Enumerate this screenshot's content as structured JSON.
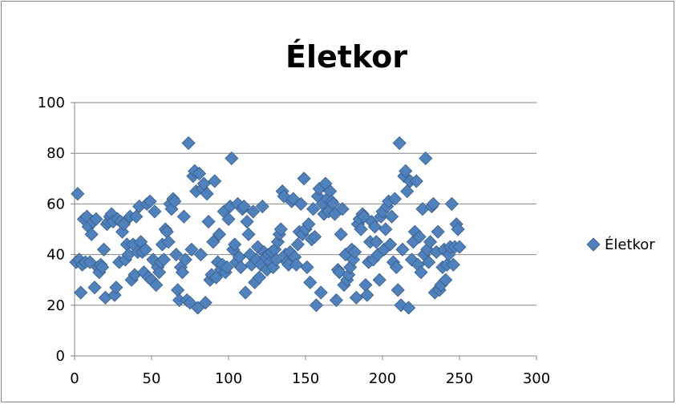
{
  "chart_data": {
    "type": "scatter",
    "title": "Életkor",
    "xlabel": "",
    "ylabel": "",
    "xlim": [
      0,
      300
    ],
    "ylim": [
      0,
      100
    ],
    "x_ticks": [
      0,
      50,
      100,
      150,
      200,
      250,
      300
    ],
    "y_ticks": [
      0,
      20,
      40,
      60,
      80,
      100
    ],
    "grid": "horizontal",
    "legend": {
      "position": "right",
      "entries": [
        "Életkor"
      ]
    },
    "colors": {
      "marker": "#4f81bd",
      "marker_edge": "#385d8a",
      "grid": "#868686",
      "axis": "#868686"
    },
    "series": [
      {
        "name": "Életkor",
        "points": [
          [
            1,
            37
          ],
          [
            2,
            64
          ],
          [
            3,
            38
          ],
          [
            4,
            25
          ],
          [
            5,
            36
          ],
          [
            6,
            54
          ],
          [
            7,
            37
          ],
          [
            8,
            55
          ],
          [
            9,
            51
          ],
          [
            10,
            37
          ],
          [
            11,
            48
          ],
          [
            12,
            53
          ],
          [
            13,
            27
          ],
          [
            14,
            54
          ],
          [
            15,
            35
          ],
          [
            16,
            33
          ],
          [
            17,
            36
          ],
          [
            18,
            35
          ],
          [
            19,
            42
          ],
          [
            20,
            23
          ],
          [
            21,
            52
          ],
          [
            22,
            53
          ],
          [
            23,
            55
          ],
          [
            24,
            56
          ],
          [
            25,
            53
          ],
          [
            26,
            24
          ],
          [
            27,
            27
          ],
          [
            28,
            54
          ],
          [
            29,
            37
          ],
          [
            30,
            53
          ],
          [
            31,
            49
          ],
          [
            32,
            52
          ],
          [
            33,
            38
          ],
          [
            34,
            44
          ],
          [
            35,
            40
          ],
          [
            36,
            55
          ],
          [
            37,
            30
          ],
          [
            38,
            44
          ],
          [
            39,
            32
          ],
          [
            40,
            55
          ],
          [
            41,
            41
          ],
          [
            42,
            59
          ],
          [
            43,
            45
          ],
          [
            44,
            41
          ],
          [
            45,
            33
          ],
          [
            46,
            42
          ],
          [
            47,
            60
          ],
          [
            48,
            31
          ],
          [
            49,
            61
          ],
          [
            50,
            30
          ],
          [
            51,
            38
          ],
          [
            52,
            57
          ],
          [
            53,
            28
          ],
          [
            54,
            35
          ],
          [
            55,
            33
          ],
          [
            56,
            37
          ],
          [
            57,
            44
          ],
          [
            58,
            38
          ],
          [
            59,
            50
          ],
          [
            60,
            49
          ],
          [
            61,
            45
          ],
          [
            62,
            60
          ],
          [
            63,
            58
          ],
          [
            64,
            62
          ],
          [
            65,
            61
          ],
          [
            66,
            40
          ],
          [
            67,
            26
          ],
          [
            68,
            22
          ],
          [
            69,
            35
          ],
          [
            70,
            33
          ],
          [
            71,
            55
          ],
          [
            72,
            38
          ],
          [
            73,
            22
          ],
          [
            74,
            84
          ],
          [
            75,
            21
          ],
          [
            76,
            42
          ],
          [
            77,
            71
          ],
          [
            78,
            73
          ],
          [
            79,
            65
          ],
          [
            80,
            19
          ],
          [
            81,
            72
          ],
          [
            82,
            40
          ],
          [
            83,
            66
          ],
          [
            84,
            68
          ],
          [
            85,
            21
          ],
          [
            86,
            64
          ],
          [
            87,
            53
          ],
          [
            88,
            30
          ],
          [
            89,
            32
          ],
          [
            90,
            45
          ],
          [
            91,
            69
          ],
          [
            92,
            31
          ],
          [
            93,
            37
          ],
          [
            94,
            48
          ],
          [
            95,
            34
          ],
          [
            96,
            36
          ],
          [
            97,
            57
          ],
          [
            98,
            33
          ],
          [
            99,
            35
          ],
          [
            100,
            54
          ],
          [
            101,
            59
          ],
          [
            102,
            78
          ],
          [
            103,
            42
          ],
          [
            104,
            44
          ],
          [
            105,
            37
          ],
          [
            106,
            60
          ],
          [
            107,
            39
          ],
          [
            108,
            35
          ],
          [
            109,
            58
          ],
          [
            110,
            59
          ],
          [
            111,
            25
          ],
          [
            112,
            53
          ],
          [
            113,
            48
          ],
          [
            114,
            40
          ],
          [
            115,
            36
          ],
          [
            116,
            57
          ],
          [
            117,
            29
          ],
          [
            118,
            38
          ],
          [
            119,
            43
          ],
          [
            120,
            31
          ],
          [
            121,
            36
          ],
          [
            122,
            59
          ],
          [
            123,
            41
          ],
          [
            124,
            39
          ],
          [
            125,
            34
          ],
          [
            126,
            40
          ],
          [
            127,
            37
          ],
          [
            128,
            41
          ],
          [
            129,
            35
          ],
          [
            130,
            42
          ],
          [
            131,
            38
          ],
          [
            132,
            45
          ],
          [
            133,
            48
          ],
          [
            134,
            50
          ],
          [
            135,
            65
          ],
          [
            136,
            63
          ],
          [
            137,
            40
          ],
          [
            138,
            37
          ],
          [
            139,
            36
          ],
          [
            140,
            41
          ],
          [
            141,
            61
          ],
          [
            142,
            62
          ],
          [
            143,
            39
          ],
          [
            144,
            36
          ],
          [
            145,
            44
          ],
          [
            146,
            49
          ],
          [
            147,
            60
          ],
          [
            148,
            48
          ],
          [
            149,
            70
          ],
          [
            150,
            50
          ],
          [
            151,
            35
          ],
          [
            152,
            52
          ],
          [
            153,
            29
          ],
          [
            154,
            46
          ],
          [
            155,
            58
          ],
          [
            156,
            47
          ],
          [
            157,
            20
          ],
          [
            158,
            63
          ],
          [
            159,
            66
          ],
          [
            160,
            25
          ],
          [
            161,
            60
          ],
          [
            162,
            56
          ],
          [
            163,
            68
          ],
          [
            164,
            62
          ],
          [
            165,
            57
          ],
          [
            166,
            65
          ],
          [
            167,
            61
          ],
          [
            168,
            60
          ],
          [
            169,
            56
          ],
          [
            170,
            22
          ],
          [
            171,
            34
          ],
          [
            172,
            33
          ],
          [
            173,
            48
          ],
          [
            174,
            58
          ],
          [
            175,
            28
          ],
          [
            176,
            40
          ],
          [
            177,
            30
          ],
          [
            178,
            32
          ],
          [
            179,
            35
          ],
          [
            180,
            42
          ],
          [
            181,
            38
          ],
          [
            182,
            41
          ],
          [
            183,
            23
          ],
          [
            184,
            52
          ],
          [
            185,
            54
          ],
          [
            186,
            50
          ],
          [
            187,
            56
          ],
          [
            188,
            55
          ],
          [
            189,
            28
          ],
          [
            190,
            24
          ],
          [
            191,
            37
          ],
          [
            192,
            45
          ],
          [
            193,
            53
          ],
          [
            194,
            38
          ],
          [
            195,
            51
          ],
          [
            196,
            45
          ],
          [
            197,
            40
          ],
          [
            198,
            30
          ],
          [
            199,
            55
          ],
          [
            200,
            57
          ],
          [
            201,
            42
          ],
          [
            202,
            50
          ],
          [
            203,
            59
          ],
          [
            204,
            61
          ],
          [
            205,
            44
          ],
          [
            206,
            55
          ],
          [
            207,
            37
          ],
          [
            208,
            62
          ],
          [
            209,
            35
          ],
          [
            210,
            26
          ],
          [
            211,
            84
          ],
          [
            212,
            20
          ],
          [
            213,
            42
          ],
          [
            214,
            71
          ],
          [
            215,
            73
          ],
          [
            216,
            65
          ],
          [
            217,
            19
          ],
          [
            218,
            69
          ],
          [
            219,
            38
          ],
          [
            220,
            45
          ],
          [
            221,
            49
          ],
          [
            222,
            69
          ],
          [
            223,
            36
          ],
          [
            224,
            47
          ],
          [
            225,
            33
          ],
          [
            226,
            58
          ],
          [
            227,
            40
          ],
          [
            228,
            78
          ],
          [
            229,
            42
          ],
          [
            230,
            37
          ],
          [
            231,
            45
          ],
          [
            232,
            59
          ],
          [
            233,
            60
          ],
          [
            234,
            25
          ],
          [
            235,
            41
          ],
          [
            236,
            49
          ],
          [
            237,
            26
          ],
          [
            238,
            28
          ],
          [
            239,
            35
          ],
          [
            240,
            42
          ],
          [
            241,
            30
          ],
          [
            242,
            36
          ],
          [
            243,
            40
          ],
          [
            244,
            43
          ],
          [
            245,
            60
          ],
          [
            246,
            36
          ],
          [
            247,
            43
          ],
          [
            248,
            52
          ],
          [
            249,
            50
          ],
          [
            250,
            43
          ]
        ]
      }
    ]
  }
}
